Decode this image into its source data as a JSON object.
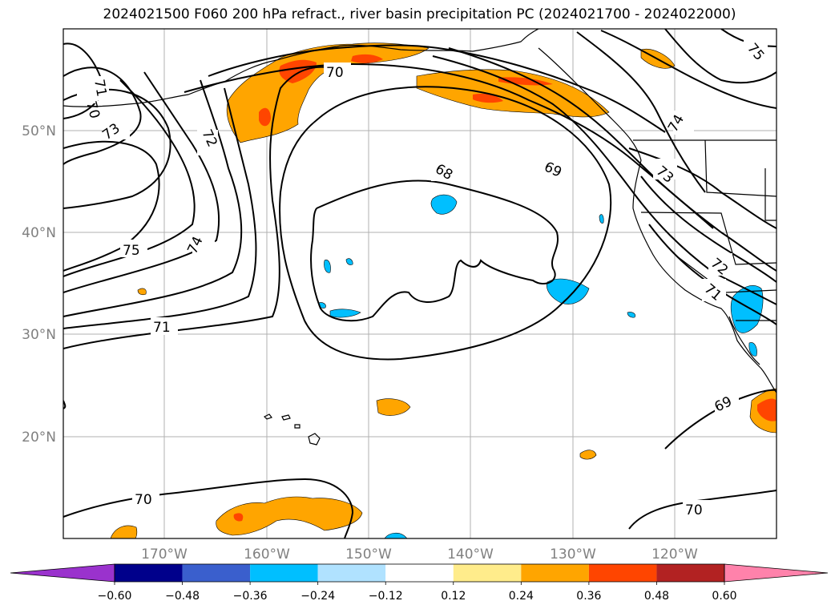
{
  "title": "2024021500 F060 200 hPa refract., river basin precipitation PC (2024021700 - 2024022000)",
  "lon_labels": [
    "170°W",
    "160°W",
    "150°W",
    "140°W",
    "130°W",
    "120°W"
  ],
  "lat_labels": [
    "50°N",
    "40°N",
    "30°N",
    "20°N"
  ],
  "contour_labels": [
    "70",
    "71",
    "73",
    "72",
    "75",
    "74",
    "71",
    "70",
    "68",
    "69",
    "74",
    "73",
    "72",
    "71",
    "75",
    "69",
    "70",
    "70"
  ],
  "colorbar": {
    "ticks": [
      "−0.60",
      "−0.48",
      "−0.36",
      "−0.24",
      "−0.12",
      "0.12",
      "0.24",
      "0.36",
      "0.48",
      "0.60"
    ],
    "colors": [
      "#9a32cd",
      "#00008b",
      "#3a5fcd",
      "#00bfff",
      "#b0e2ff",
      "#ffffff",
      "#ffec8b",
      "#ffa500",
      "#ff4500",
      "#b22222",
      "#ff82ab"
    ]
  }
}
